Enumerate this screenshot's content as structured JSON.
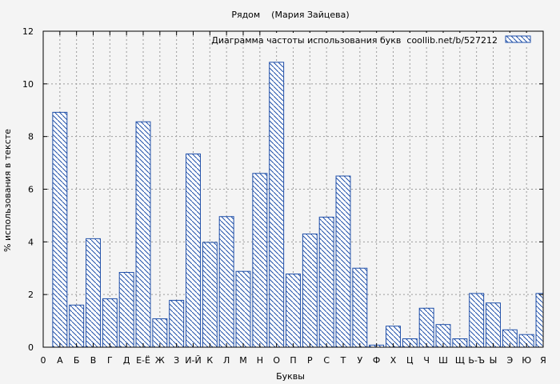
{
  "chart_data": {
    "type": "bar",
    "title": "Рядом    (Мария Зайцева)",
    "xlabel": "Буквы",
    "ylabel": "% использования в тексте",
    "legend": {
      "label": "Диаграмма частоты использования букв  coollib.net/b/527212",
      "position": "top-right"
    },
    "ylim": [
      0,
      12
    ],
    "yticks": [
      0,
      2,
      4,
      6,
      8,
      10,
      12
    ],
    "grid": true,
    "colors": {
      "bar_stroke": "#1e4ea8",
      "hatch": "#1e4ea8",
      "grid": "#9a9a9a",
      "background": "#f4f4f4"
    },
    "x_tick_labels": [
      "0",
      "А",
      "Б",
      "В",
      "Г",
      "Д",
      "Е-Ё",
      "Ж",
      "З",
      "И-Й",
      "К",
      "Л",
      "М",
      "Н",
      "О",
      "П",
      "Р",
      "С",
      "Т",
      "У",
      "Ф",
      "Х",
      "Ц",
      "Ч",
      "Ш",
      "Щ",
      "Ь-Ъ",
      "Ы",
      "Э",
      "Ю",
      "Я"
    ],
    "categories": [
      "А",
      "Б",
      "В",
      "Г",
      "Д",
      "Е-Ё",
      "Ж",
      "З",
      "И-Й",
      "К",
      "Л",
      "М",
      "Н",
      "О",
      "П",
      "Р",
      "С",
      "Т",
      "У",
      "Ф",
      "Х",
      "Ц",
      "Ч",
      "Ш",
      "Щ",
      "Ь-Ъ",
      "Ы",
      "Э",
      "Ю",
      "Я"
    ],
    "values": [
      8.92,
      1.6,
      4.12,
      1.84,
      2.84,
      8.56,
      1.08,
      1.78,
      7.34,
      3.98,
      4.96,
      2.88,
      6.6,
      10.82,
      2.78,
      4.3,
      4.94,
      6.5,
      3.0,
      0.08,
      0.8,
      0.32,
      1.48,
      0.86,
      0.32,
      2.04,
      1.68,
      0.66,
      0.48,
      2.04
    ]
  }
}
